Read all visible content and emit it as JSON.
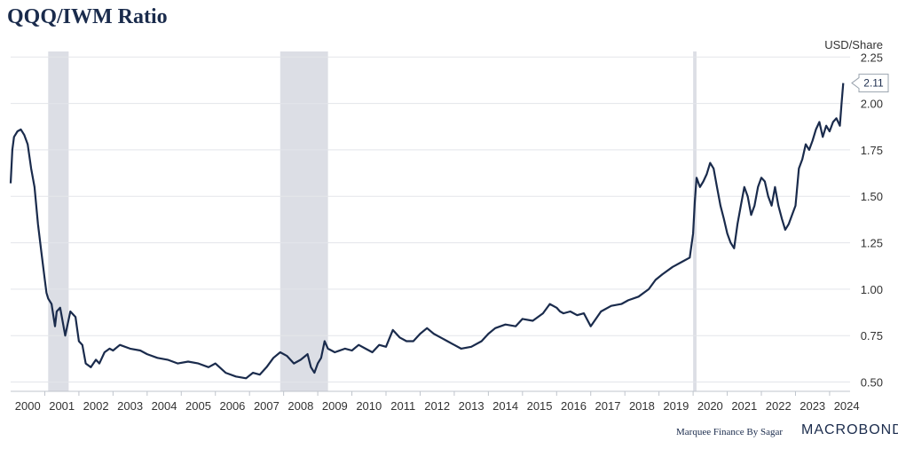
{
  "chart_data": {
    "type": "line",
    "title": "QQQ/IWM Ratio",
    "unit_label": "USD/Share",
    "ylim": [
      0.45,
      2.28
    ],
    "xlim": [
      2000.0,
      2024.6
    ],
    "y_ticks": [
      "0.50",
      "0.75",
      "1.00",
      "1.25",
      "1.50",
      "1.75",
      "2.00",
      "2.25"
    ],
    "y_tick_values": [
      0.5,
      0.75,
      1.0,
      1.25,
      1.5,
      1.75,
      2.0,
      2.25
    ],
    "x_ticks": [
      "2000",
      "2001",
      "2002",
      "2003",
      "2004",
      "2005",
      "2006",
      "2007",
      "2008",
      "2009",
      "2010",
      "2011",
      "2012",
      "2013",
      "2014",
      "2015",
      "2016",
      "2017",
      "2018",
      "2019",
      "2020",
      "2021",
      "2022",
      "2023",
      "2024"
    ],
    "recessions": [
      [
        2001.1,
        2001.7
      ],
      [
        2007.9,
        2009.3
      ],
      [
        2020.0,
        2020.1
      ]
    ],
    "last_value_label": "2.11",
    "last_value": 2.11,
    "color": "#1a2b4c",
    "series": [
      {
        "name": "QQQ/IWM",
        "x": [
          2000.0,
          2000.05,
          2000.1,
          2000.2,
          2000.3,
          2000.4,
          2000.5,
          2000.6,
          2000.7,
          2000.8,
          2000.9,
          2001.0,
          2001.05,
          2001.1,
          2001.2,
          2001.3,
          2001.35,
          2001.45,
          2001.6,
          2001.75,
          2001.9,
          2002.0,
          2002.1,
          2002.2,
          2002.35,
          2002.5,
          2002.6,
          2002.75,
          2002.9,
          2003.0,
          2003.2,
          2003.5,
          2003.8,
          2004.0,
          2004.3,
          2004.6,
          2004.9,
          2005.2,
          2005.5,
          2005.8,
          2006.0,
          2006.3,
          2006.6,
          2006.9,
          2007.1,
          2007.3,
          2007.5,
          2007.7,
          2007.9,
          2008.1,
          2008.3,
          2008.5,
          2008.7,
          2008.8,
          2008.9,
          2009.0,
          2009.1,
          2009.2,
          2009.3,
          2009.5,
          2009.8,
          2010.0,
          2010.2,
          2010.4,
          2010.6,
          2010.8,
          2011.0,
          2011.2,
          2011.4,
          2011.6,
          2011.8,
          2012.0,
          2012.2,
          2012.4,
          2012.6,
          2012.8,
          2013.0,
          2013.2,
          2013.5,
          2013.8,
          2014.0,
          2014.2,
          2014.5,
          2014.8,
          2015.0,
          2015.3,
          2015.6,
          2015.8,
          2016.0,
          2016.1,
          2016.2,
          2016.4,
          2016.6,
          2016.8,
          2017.0,
          2017.3,
          2017.6,
          2017.9,
          2018.1,
          2018.4,
          2018.7,
          2018.9,
          2019.1,
          2019.4,
          2019.7,
          2019.9,
          2020.0,
          2020.05,
          2020.1,
          2020.2,
          2020.3,
          2020.4,
          2020.5,
          2020.6,
          2020.7,
          2020.8,
          2020.9,
          2021.0,
          2021.1,
          2021.2,
          2021.3,
          2021.4,
          2021.5,
          2021.6,
          2021.7,
          2021.8,
          2021.9,
          2022.0,
          2022.1,
          2022.2,
          2022.3,
          2022.4,
          2022.5,
          2022.6,
          2022.7,
          2022.8,
          2022.9,
          2023.0,
          2023.1,
          2023.2,
          2023.3,
          2023.4,
          2023.5,
          2023.6,
          2023.7,
          2023.8,
          2023.9,
          2024.0,
          2024.1,
          2024.2,
          2024.3,
          2024.35,
          2024.4
        ],
        "values": [
          1.57,
          1.75,
          1.82,
          1.85,
          1.86,
          1.83,
          1.78,
          1.65,
          1.55,
          1.35,
          1.2,
          1.05,
          0.98,
          0.95,
          0.92,
          0.8,
          0.88,
          0.9,
          0.75,
          0.88,
          0.85,
          0.72,
          0.7,
          0.6,
          0.58,
          0.62,
          0.6,
          0.66,
          0.68,
          0.67,
          0.7,
          0.68,
          0.67,
          0.65,
          0.63,
          0.62,
          0.6,
          0.61,
          0.6,
          0.58,
          0.6,
          0.55,
          0.53,
          0.52,
          0.55,
          0.54,
          0.58,
          0.63,
          0.66,
          0.64,
          0.6,
          0.62,
          0.65,
          0.58,
          0.55,
          0.6,
          0.63,
          0.72,
          0.68,
          0.66,
          0.68,
          0.67,
          0.7,
          0.68,
          0.66,
          0.7,
          0.69,
          0.78,
          0.74,
          0.72,
          0.72,
          0.76,
          0.79,
          0.76,
          0.74,
          0.72,
          0.7,
          0.68,
          0.69,
          0.72,
          0.76,
          0.79,
          0.81,
          0.8,
          0.84,
          0.83,
          0.87,
          0.92,
          0.9,
          0.88,
          0.87,
          0.88,
          0.86,
          0.87,
          0.8,
          0.88,
          0.91,
          0.92,
          0.94,
          0.96,
          1.0,
          1.05,
          1.08,
          1.12,
          1.15,
          1.17,
          1.3,
          1.47,
          1.6,
          1.55,
          1.58,
          1.62,
          1.68,
          1.65,
          1.55,
          1.45,
          1.38,
          1.3,
          1.25,
          1.22,
          1.35,
          1.45,
          1.55,
          1.5,
          1.4,
          1.45,
          1.55,
          1.6,
          1.58,
          1.5,
          1.45,
          1.55,
          1.45,
          1.38,
          1.32,
          1.35,
          1.4,
          1.45,
          1.65,
          1.7,
          1.78,
          1.75,
          1.8,
          1.86,
          1.9,
          1.82,
          1.88,
          1.85,
          1.9,
          1.92,
          1.88,
          2.0,
          2.11
        ]
      }
    ]
  },
  "footer": {
    "source": "Marquee Finance By Sagar",
    "brand": "MACROBOND"
  }
}
